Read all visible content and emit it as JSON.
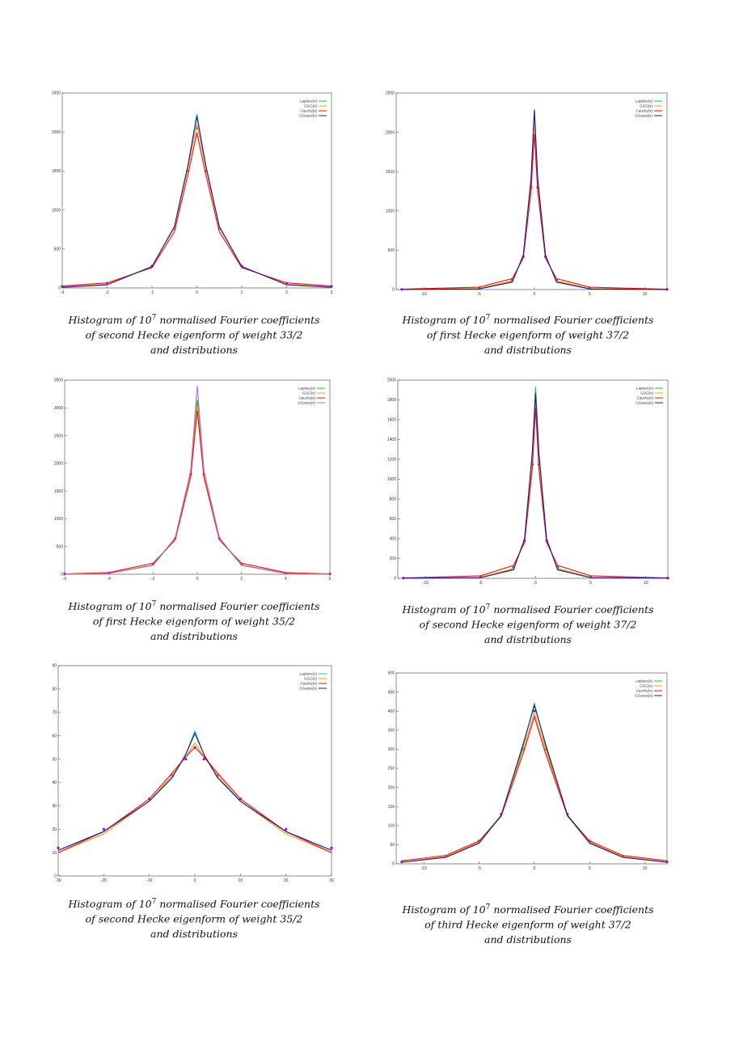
{
  "chart_data": [
    {
      "type": "line",
      "xlim": [
        -3,
        3
      ],
      "ylim": [
        0,
        2500
      ],
      "xticks": [
        -3,
        -2,
        -1,
        0,
        1,
        2,
        3
      ],
      "yticks": [
        0,
        500,
        1000,
        1500,
        2000,
        2500
      ],
      "x": [
        -3,
        -2,
        -1,
        -0.5,
        -0.2,
        0,
        0.2,
        0.5,
        1,
        2,
        3
      ],
      "histogram": {
        "color": "#9a00d0",
        "values": [
          20,
          60,
          280,
          760,
          1500,
          2050,
          1500,
          760,
          280,
          60,
          20
        ]
      },
      "series": [
        {
          "name": "Laplace(x)",
          "color": "#00cc33",
          "values": [
            10,
            45,
            270,
            780,
            1560,
            2230,
            1560,
            780,
            270,
            45,
            10
          ]
        },
        {
          "name": "GGG(x)",
          "color": "#ff9900",
          "values": [
            12,
            48,
            275,
            770,
            1530,
            2100,
            1530,
            770,
            275,
            48,
            12
          ]
        },
        {
          "name": "Cauchy(x)",
          "color": "#ee1111",
          "values": [
            25,
            65,
            260,
            720,
            1450,
            1990,
            1450,
            720,
            260,
            65,
            25
          ]
        },
        {
          "name": "GGauss(x)",
          "color": "#1a1aaa",
          "values": [
            8,
            40,
            275,
            790,
            1570,
            2200,
            1570,
            790,
            275,
            40,
            8
          ]
        }
      ],
      "caption": [
        "Histogram of 10",
        "7",
        " normalised Fourier coefficients",
        "of second Hecke eigenform of weight 33/2",
        "and distributions"
      ]
    },
    {
      "type": "line",
      "xlim": [
        -12.5,
        12
      ],
      "ylim": [
        0,
        2500
      ],
      "xticks": [
        -10,
        -5,
        0,
        5,
        10
      ],
      "yticks": [
        0,
        500,
        1000,
        1500,
        2000,
        2500
      ],
      "x": [
        -12,
        -5,
        -2,
        -1,
        -0.3,
        0,
        0.3,
        1,
        2,
        5,
        12
      ],
      "histogram": {
        "color": "#9a00d0",
        "values": [
          2,
          20,
          120,
          420,
          1300,
          2050,
          1300,
          420,
          120,
          20,
          2
        ]
      },
      "series": [
        {
          "name": "Laplace(x)",
          "color": "#00cc33",
          "values": [
            1,
            10,
            100,
            430,
            1400,
            2280,
            1400,
            430,
            100,
            10,
            1
          ]
        },
        {
          "name": "GGG(x)",
          "color": "#ff9900",
          "values": [
            1,
            12,
            110,
            425,
            1350,
            2150,
            1350,
            425,
            110,
            12,
            1
          ]
        },
        {
          "name": "Cauchy(x)",
          "color": "#ee1111",
          "values": [
            5,
            30,
            140,
            400,
            1250,
            1980,
            1250,
            400,
            140,
            30,
            5
          ]
        },
        {
          "name": "GGauss(x)",
          "color": "#1a1aaa",
          "values": [
            1,
            8,
            95,
            440,
            1420,
            2290,
            1420,
            440,
            95,
            8,
            1
          ]
        }
      ],
      "caption": [
        "Histogram of 10",
        "7",
        " normalised Fourier coefficients",
        "of first Hecke eigenform of weight 37/2",
        "and distributions"
      ]
    },
    {
      "type": "line",
      "xlim": [
        -6,
        6
      ],
      "ylim": [
        0,
        3500
      ],
      "xticks": [
        -6,
        -4,
        -2,
        0,
        2,
        4,
        6
      ],
      "yticks": [
        0,
        500,
        1000,
        1500,
        2000,
        2500,
        3000,
        3500
      ],
      "x": [
        -6,
        -4,
        -2,
        -1,
        -0.3,
        0,
        0.3,
        1,
        2,
        4,
        6
      ],
      "histogram": {
        "color": "#9a00d0",
        "values": [
          3,
          20,
          180,
          650,
          1800,
          3050,
          1800,
          650,
          180,
          20,
          3
        ]
      },
      "series": [
        {
          "name": "Laplace(x)",
          "color": "#00cc33",
          "values": [
            2,
            15,
            160,
            640,
            1850,
            3150,
            1850,
            640,
            160,
            15,
            2
          ]
        },
        {
          "name": "GGG(x)",
          "color": "#ff9900",
          "values": [
            2,
            16,
            170,
            650,
            1820,
            3050,
            1820,
            650,
            170,
            16,
            2
          ]
        },
        {
          "name": "Cauchy(x)",
          "color": "#ee1111",
          "values": [
            6,
            30,
            200,
            620,
            1750,
            2950,
            1750,
            620,
            200,
            30,
            6
          ]
        },
        {
          "name": "GGauss(x)",
          "color": "#b070e0",
          "values": [
            1,
            14,
            165,
            660,
            1870,
            3400,
            1870,
            660,
            165,
            14,
            1
          ]
        }
      ],
      "caption": [
        "Histogram of 10",
        "7",
        " normalised Fourier coefficients",
        "of first Hecke eigenform of weight 35/2",
        "and distributions"
      ]
    },
    {
      "type": "line",
      "xlim": [
        -12.5,
        12
      ],
      "ylim": [
        0,
        2000
      ],
      "xticks": [
        -10,
        -5,
        0,
        5,
        10
      ],
      "yticks": [
        0,
        200,
        400,
        600,
        800,
        1000,
        1200,
        1400,
        1600,
        1800,
        2000
      ],
      "x": [
        -12,
        -5,
        -2,
        -1,
        -0.3,
        0,
        0.3,
        1,
        2,
        5,
        12
      ],
      "histogram": {
        "color": "#9a00d0",
        "values": [
          2,
          15,
          110,
          380,
          1150,
          1750,
          1150,
          380,
          110,
          15,
          2
        ]
      },
      "series": [
        {
          "name": "Laplace(x)",
          "color": "#00cc33",
          "values": [
            1,
            8,
            90,
            390,
            1250,
            1930,
            1250,
            390,
            90,
            8,
            1
          ]
        },
        {
          "name": "GGG(x)",
          "color": "#ff9900",
          "values": [
            1,
            10,
            100,
            385,
            1200,
            1800,
            1200,
            385,
            100,
            10,
            1
          ]
        },
        {
          "name": "Cauchy(x)",
          "color": "#ee1111",
          "values": [
            4,
            25,
            130,
            360,
            1100,
            1720,
            1100,
            360,
            130,
            25,
            4
          ]
        },
        {
          "name": "GGauss(x)",
          "color": "#1a1aaa",
          "values": [
            1,
            6,
            85,
            400,
            1270,
            1870,
            1270,
            400,
            85,
            6,
            1
          ]
        }
      ],
      "caption": [
        "Histogram of 10",
        "7",
        " normalised Fourier coefficients",
        "of second Hecke eigenform of weight 37/2",
        "and distributions"
      ]
    },
    {
      "type": "line",
      "xlim": [
        -30,
        30
      ],
      "ylim": [
        0,
        90
      ],
      "xticks": [
        -30,
        -20,
        -10,
        0,
        10,
        20,
        30
      ],
      "yticks": [
        0,
        10,
        20,
        30,
        40,
        50,
        60,
        70,
        80,
        90
      ],
      "x": [
        -30,
        -20,
        -10,
        -5,
        -2,
        0,
        2,
        5,
        10,
        20,
        30
      ],
      "histogram": {
        "color": "#9b00e0",
        "values": [
          12,
          20,
          33,
          43,
          50,
          55,
          50,
          43,
          33,
          20,
          12
        ]
      },
      "series": [
        {
          "name": "Laplace(x)",
          "color": "#00cc99",
          "values": [
            11,
            19,
            32,
            42,
            52,
            62,
            52,
            42,
            32,
            19,
            11
          ]
        },
        {
          "name": "GGG(x)",
          "color": "#ff9900",
          "values": [
            10,
            18,
            32,
            43,
            51,
            57,
            51,
            43,
            32,
            18,
            10
          ]
        },
        {
          "name": "Cauchy(x)",
          "color": "#ee1111",
          "values": [
            10,
            19,
            33,
            44,
            51,
            55,
            51,
            44,
            33,
            19,
            10
          ]
        },
        {
          "name": "GGauss(x)",
          "color": "#1a1aaa",
          "values": [
            11,
            19,
            32,
            42,
            52,
            61,
            52,
            42,
            32,
            19,
            11
          ]
        }
      ],
      "caption": [
        "Histogram of 10",
        "7",
        " normalised Fourier coefficients",
        "of second Hecke eigenform of weight 35/2",
        "and distributions"
      ]
    },
    {
      "type": "line",
      "xlim": [
        -12.5,
        12
      ],
      "ylim": [
        0,
        500
      ],
      "xticks": [
        -10,
        -5,
        0,
        5,
        10
      ],
      "yticks": [
        0,
        50,
        100,
        150,
        200,
        250,
        300,
        350,
        400,
        450,
        500
      ],
      "x": [
        -12,
        -8,
        -5,
        -3,
        -1,
        0,
        1,
        3,
        5,
        8,
        12
      ],
      "histogram": {
        "color": "#7a20e0",
        "values": [
          5,
          20,
          60,
          130,
          300,
          400,
          300,
          130,
          60,
          20,
          5
        ]
      },
      "series": [
        {
          "name": "Laplace(x)",
          "color": "#00cc33",
          "values": [
            5,
            18,
            55,
            125,
            310,
            420,
            310,
            125,
            55,
            18,
            5
          ]
        },
        {
          "name": "GGG(x)",
          "color": "#ff9900",
          "values": [
            5,
            19,
            57,
            128,
            300,
            395,
            300,
            128,
            57,
            19,
            5
          ]
        },
        {
          "name": "Cauchy(x)",
          "color": "#ee1111",
          "values": [
            8,
            22,
            60,
            125,
            290,
            385,
            290,
            125,
            60,
            22,
            8
          ]
        },
        {
          "name": "GGauss(x)",
          "color": "#1a1aaa",
          "values": [
            4,
            17,
            54,
            127,
            315,
            415,
            315,
            127,
            54,
            17,
            4
          ]
        }
      ],
      "caption": [
        "Histogram of 10",
        "7",
        " normalised Fourier coefficients",
        "of third Hecke eigenform of weight 37/2",
        "and distributions"
      ]
    }
  ]
}
